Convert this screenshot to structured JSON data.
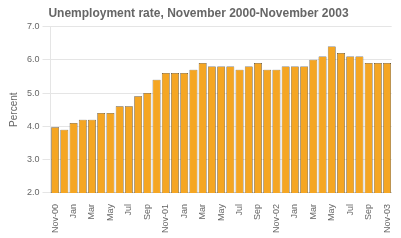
{
  "chart_data": {
    "type": "bar",
    "title": "Unemployment rate, November 2000-November 2003",
    "ylabel": "Percent",
    "categories": [
      "Nov-00",
      null,
      "Jan",
      null,
      "Mar",
      null,
      "May",
      null,
      "Jul",
      null,
      "Sep",
      null,
      "Nov-01",
      null,
      "Jan",
      null,
      "Mar",
      null,
      "May",
      null,
      "Jul",
      null,
      "Sep",
      null,
      "Nov-02",
      null,
      "Jan",
      null,
      "Mar",
      null,
      "May",
      null,
      "Jul",
      null,
      "Sep",
      null,
      "Nov-03"
    ],
    "values": [
      3.97,
      3.9,
      4.1,
      4.2,
      4.2,
      4.4,
      4.4,
      4.6,
      4.6,
      4.9,
      5.0,
      5.4,
      5.6,
      5.6,
      5.6,
      5.7,
      5.9,
      5.8,
      5.8,
      5.8,
      5.7,
      5.8,
      5.9,
      5.7,
      5.7,
      5.8,
      5.8,
      5.8,
      6.0,
      6.1,
      6.4,
      6.2,
      6.1,
      6.1,
      5.9,
      5.9,
      5.9
    ],
    "color": "#F5A623",
    "ylim": [
      2.0,
      7.0
    ],
    "yticks": [
      {
        "value": 2.0,
        "label": "2.0"
      },
      {
        "value": 3.0,
        "label": "3.0"
      },
      {
        "value": 4.0,
        "label": "4.0"
      },
      {
        "value": 5.0,
        "label": "5.0"
      },
      {
        "value": 6.0,
        "label": "6.0"
      },
      {
        "value": 7.0,
        "label": "7.0"
      }
    ],
    "grid": true
  }
}
